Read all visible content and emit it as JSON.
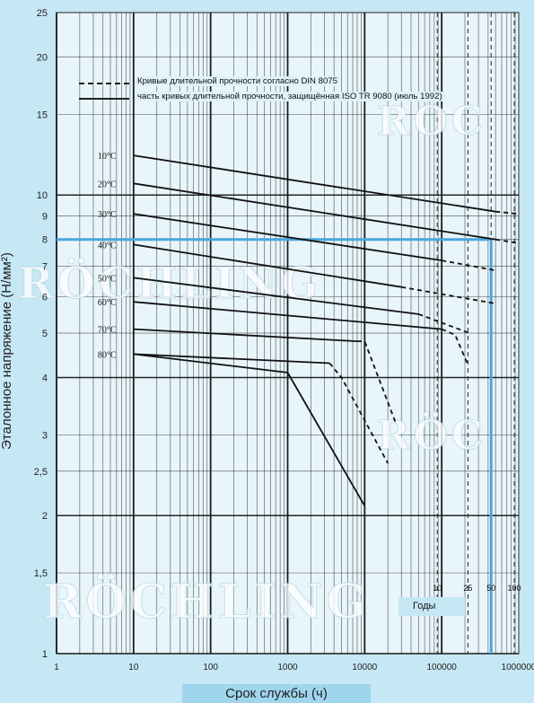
{
  "chart_data": {
    "type": "line",
    "xscale": "log",
    "yscale": "log",
    "xlim": [
      1,
      1000000
    ],
    "ylim": [
      1,
      25
    ],
    "xlabel": "Срок службы (ч)",
    "ylabel": "Эталонное напряжение (Н/мм²)",
    "x_ticks": [
      "1",
      "10",
      "100",
      "1000",
      "10000",
      "100000",
      "1000000"
    ],
    "y_ticks": [
      "1",
      "1,5",
      "2",
      "2,5",
      "3",
      "4",
      "5",
      "6",
      "7",
      "8",
      "9",
      "10",
      "15",
      "20",
      "25"
    ],
    "legend": [
      {
        "style": "dashed",
        "label": "Кривые длительной прочности согласно DIN 8075"
      },
      {
        "style": "solid",
        "label": "часть кривых длительной прочности, защищённая ISO TR 9080 (июль 1992)"
      }
    ],
    "series": [
      {
        "name": "10°C",
        "solid": [
          [
            10,
            12.2
          ],
          [
            500000,
            9.2
          ]
        ],
        "dashed": [
          [
            500000,
            9.2
          ],
          [
            1000000,
            9.1
          ]
        ]
      },
      {
        "name": "20°C",
        "solid": [
          [
            10,
            10.6
          ],
          [
            500000,
            8.0
          ]
        ],
        "dashed": [
          [
            500000,
            8.0
          ],
          [
            1000000,
            7.85
          ]
        ]
      },
      {
        "name": "30°C",
        "solid": [
          [
            10,
            9.1
          ],
          [
            100000,
            7.2
          ]
        ],
        "dashed": [
          [
            100000,
            7.2
          ],
          [
            500000,
            6.85
          ]
        ]
      },
      {
        "name": "40°C",
        "solid": [
          [
            10,
            7.8
          ],
          [
            30000,
            6.3
          ]
        ],
        "dashed": [
          [
            30000,
            6.3
          ],
          [
            500000,
            5.8
          ]
        ]
      },
      {
        "name": "50°C",
        "solid": [
          [
            10,
            6.6
          ],
          [
            50000,
            5.5
          ]
        ],
        "dashed": [
          [
            50000,
            5.5
          ],
          [
            230000,
            5.0
          ]
        ]
      },
      {
        "name": "60°C",
        "solid": [
          [
            10,
            5.85
          ],
          [
            100000,
            5.1
          ]
        ],
        "dashed": [
          [
            100000,
            5.1
          ],
          [
            150000,
            4.95
          ],
          [
            220000,
            4.25
          ]
        ]
      },
      {
        "name": "70°C",
        "solid": [
          [
            10,
            5.1
          ],
          [
            8000,
            4.8
          ]
        ],
        "dashed": [
          [
            8000,
            4.8
          ],
          [
            10000,
            4.8
          ],
          [
            25000,
            3.2
          ]
        ]
      },
      {
        "name": "80°C",
        "solid": [
          [
            10,
            4.5
          ],
          [
            3500,
            4.3
          ]
        ],
        "dashed": [
          [
            3500,
            4.3
          ],
          [
            5000,
            4.0
          ],
          [
            20000,
            2.6
          ]
        ]
      },
      {
        "name": "",
        "solid": [
          [
            10,
            4.5
          ],
          [
            1000,
            4.1
          ],
          [
            10000,
            2.1
          ]
        ],
        "dashed": []
      }
    ],
    "years": {
      "label": "Годы",
      "values": [
        {
          "text": "10",
          "x": 87600
        },
        {
          "text": "25",
          "x": 219000
        },
        {
          "text": "50",
          "x": 438000
        },
        {
          "text": "100",
          "x": 876000
        }
      ]
    },
    "highlight": {
      "y": 8.0,
      "x": 438000,
      "color": "#4aa6dc"
    },
    "watermark": "RÖCHLING",
    "colors": {
      "background": "#c6e7f4",
      "plot": "#e8f5fb",
      "grid": "#111111",
      "curve": "#111111",
      "highlight": "#4aa6dc"
    }
  }
}
